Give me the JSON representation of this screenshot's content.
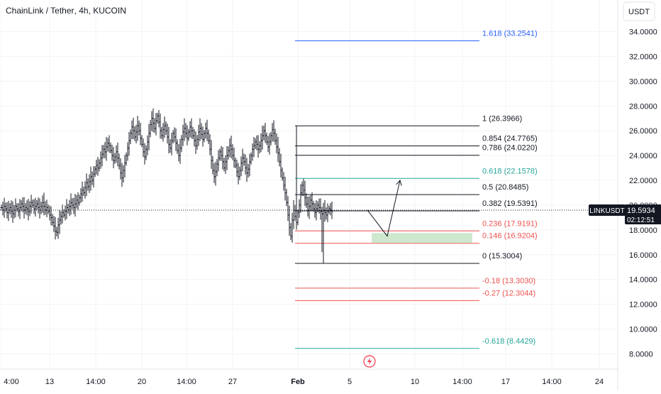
{
  "header": {
    "symbol_name": "ChainLink / Tether",
    "sep1": ", ",
    "interval": "4h",
    "sep2": ", ",
    "exchange": "KUCOIN"
  },
  "price_axis": {
    "currency_label": "USDT",
    "ticks": [
      "34.0000",
      "32.0000",
      "30.0000",
      "28.0000",
      "26.0000",
      "24.0000",
      "22.0000",
      "20.0000",
      "18.0000",
      "16.0000",
      "14.0000",
      "12.0000",
      "10.0000",
      "8.0000"
    ],
    "tick_values": [
      34,
      32,
      30,
      28,
      26,
      24,
      22,
      20,
      18,
      16,
      14,
      12,
      10,
      8
    ],
    "last_price_label": "19.5934",
    "countdown": "02:12:51",
    "symbol_tag": "LINKUSDT",
    "last_price": 19.5934
  },
  "time_axis": {
    "labels": [
      "4:00",
      "13",
      "14:00",
      "20",
      "14:00",
      "27",
      "Feb",
      "5",
      "10",
      "14:00",
      "17",
      "14:00",
      "24"
    ],
    "bold_label": "Feb"
  },
  "colors": {
    "up_bar": "#131722",
    "down_bar": "#131722",
    "fib_black": "#131722",
    "fib_teal": "#26a69a",
    "fib_red": "#ef5350",
    "fib_blue": "#2962ff",
    "zone": "#c8e6c9",
    "last_price_bg": "#131722"
  },
  "chart_data": {
    "type": "ohlc",
    "title": "ChainLink / Tether, 4h, KUCOIN",
    "y_axis": {
      "range": [
        6.8,
        35.0
      ],
      "scale": "linear",
      "unit": "USDT"
    },
    "fib_levels": [
      {
        "ratio": "1.618",
        "price": 33.2541,
        "label": "1.618 (33.2541)",
        "color": "blue"
      },
      {
        "ratio": "1",
        "price": 26.3966,
        "label": "1 (26.3966)",
        "color": "black"
      },
      {
        "ratio": "0.854",
        "price": 24.7765,
        "label": "0.854 (24.7765)",
        "color": "black"
      },
      {
        "ratio": "0.786",
        "price": 24.022,
        "label": "0.786 (24.0220)",
        "color": "black"
      },
      {
        "ratio": "0.618",
        "price": 22.1578,
        "label": "0.618 (22.1578)",
        "color": "teal"
      },
      {
        "ratio": "0.5",
        "price": 20.8485,
        "label": "0.5 (20.8485)",
        "color": "black"
      },
      {
        "ratio": "0.382",
        "price": 19.5391,
        "label": "0.382 (19.5391)",
        "color": "black"
      },
      {
        "ratio": "0.236",
        "price": 17.9191,
        "label": "0.236 (17.9191)",
        "color": "red"
      },
      {
        "ratio": "0.146",
        "price": 16.9204,
        "label": "0.146 (16.9204)",
        "color": "red"
      },
      {
        "ratio": "0",
        "price": 15.3004,
        "label": "0 (15.3004)",
        "color": "black"
      },
      {
        "ratio": "-0.18",
        "price": 13.303,
        "label": "-0.18 (13.3030)",
        "color": "red"
      },
      {
        "ratio": "-0.27",
        "price": 12.3044,
        "label": "-0.27 (12.3044)",
        "color": "red"
      },
      {
        "ratio": "-0.618",
        "price": 8.4429,
        "label": "-0.618 (8.4429)",
        "color": "teal"
      }
    ],
    "fib_start_index": 207,
    "fib_end_index": 337,
    "projection_path": [
      {
        "index": 258,
        "price": 19.6
      },
      {
        "index": 272,
        "price": 17.5
      },
      {
        "index": 281,
        "price": 22.0
      }
    ],
    "zone": {
      "start_index": 261,
      "end_index": 332,
      "price_top": 17.75,
      "price_bottom": 16.95
    },
    "ohlc_closes": [
      19.8,
      19.6,
      19.9,
      19.7,
      19.4,
      19.6,
      19.8,
      19.5,
      19.3,
      19.6,
      19.9,
      19.7,
      19.5,
      19.8,
      20.1,
      19.9,
      19.6,
      19.8,
      19.7,
      19.5,
      19.9,
      20.2,
      20.0,
      19.7,
      19.9,
      20.1,
      19.8,
      19.6,
      19.9,
      20.2,
      19.9,
      19.6,
      19.8,
      19.5,
      19.2,
      19.0,
      18.6,
      18.3,
      17.9,
      17.8,
      18.4,
      18.8,
      19.1,
      19.4,
      19.2,
      19.5,
      19.8,
      19.6,
      19.9,
      20.2,
      20.0,
      19.8,
      20.1,
      20.4,
      20.2,
      20.6,
      20.9,
      21.2,
      21.0,
      21.4,
      21.8,
      21.5,
      21.9,
      22.3,
      22.0,
      22.5,
      22.9,
      23.2,
      23.0,
      23.4,
      23.8,
      24.1,
      24.5,
      24.3,
      24.7,
      25.0,
      24.8,
      24.4,
      24.0,
      23.6,
      23.9,
      24.3,
      23.8,
      23.2,
      22.6,
      22.2,
      22.8,
      23.4,
      24.0,
      24.6,
      25.2,
      25.8,
      26.3,
      26.0,
      25.5,
      25.9,
      26.4,
      26.0,
      25.4,
      24.9,
      24.3,
      23.9,
      24.5,
      25.1,
      25.8,
      26.5,
      27.0,
      26.6,
      26.2,
      26.8,
      27.2,
      26.7,
      26.0,
      25.6,
      26.1,
      26.4,
      26.0,
      25.5,
      24.9,
      24.6,
      25.2,
      25.8,
      25.5,
      25.0,
      24.4,
      24.0,
      24.6,
      25.3,
      25.9,
      26.2,
      25.8,
      25.4,
      25.9,
      26.3,
      26.0,
      25.6,
      25.2,
      24.8,
      25.3,
      25.9,
      26.2,
      25.7,
      25.3,
      25.8,
      26.2,
      25.8,
      25.2,
      24.5,
      23.6,
      22.8,
      22.3,
      22.7,
      23.3,
      23.8,
      24.3,
      24.0,
      23.5,
      23.0,
      23.5,
      24.0,
      24.4,
      24.8,
      24.5,
      24.0,
      23.6,
      23.2,
      22.7,
      22.3,
      22.8,
      23.4,
      23.8,
      23.5,
      23.0,
      22.6,
      22.9,
      23.5,
      24.0,
      24.5,
      24.8,
      25.1,
      24.9,
      24.5,
      24.8,
      25.2,
      25.6,
      26.0,
      25.6,
      25.1,
      24.7,
      25.1,
      25.6,
      26.1,
      25.8,
      25.2,
      24.7,
      24.2,
      23.5,
      22.8,
      22.2,
      21.6,
      21.0,
      20.2,
      19.2,
      18.2,
      17.5,
      18.8,
      19.6,
      19.1,
      18.6,
      19.4,
      20.0,
      21.0,
      21.6,
      21.2,
      20.6,
      20.1,
      19.6,
      19.9,
      20.4,
      20.1,
      19.7,
      19.4,
      19.7,
      20.0,
      19.8,
      19.5,
      19.3,
      19.6,
      19.4,
      19.2,
      19.5,
      19.7,
      19.6,
      19.5
    ]
  }
}
